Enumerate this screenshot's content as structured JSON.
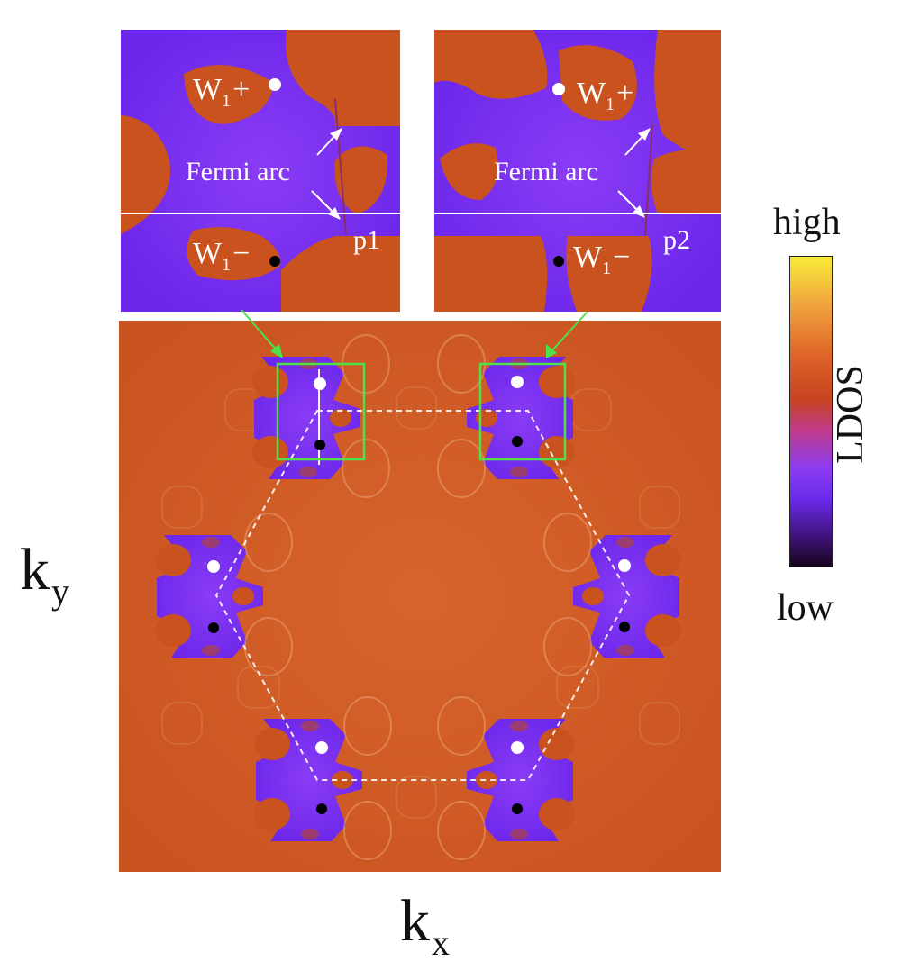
{
  "inset_left": {
    "w_plus_label": "W",
    "w_plus_sub": "1",
    "w_plus_sign": "+",
    "w_minus_label": "W",
    "w_minus_sub": "1",
    "w_minus_sign": "−",
    "arc_label": "Fermi arc",
    "point_label": "p1"
  },
  "inset_right": {
    "w_plus_label": "W",
    "w_plus_sub": "1",
    "w_plus_sign": "+",
    "w_minus_label": "W",
    "w_minus_sub": "1",
    "w_minus_sign": "−",
    "arc_label": "Fermi arc",
    "point_label": "p2"
  },
  "axes": {
    "x_label": "k",
    "x_sub": "x",
    "y_label": "k",
    "y_sub": "y"
  },
  "colorbar": {
    "title": "LDOS",
    "high_label": "high",
    "low_label": "low",
    "stops": [
      "#16041c",
      "#40137d",
      "#6a2bea",
      "#8d3df0",
      "#c03a8a",
      "#c64420",
      "#de6428",
      "#f0a13e",
      "#f8ec3a"
    ]
  },
  "colors": {
    "background_orange": "#cf5a24",
    "pocket_purple": "#7a2cf2",
    "highlight_box": "#4fe04a",
    "zone_boundary": "#ffffff"
  },
  "weyl_points": [
    {
      "chirality": "+",
      "color": "white"
    },
    {
      "chirality": "-",
      "color": "black"
    }
  ]
}
